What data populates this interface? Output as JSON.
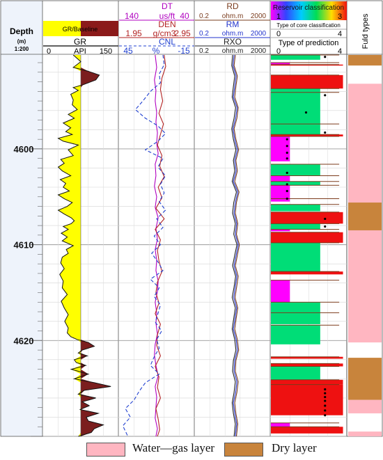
{
  "colors": {
    "gr_fill_low": "#ffff00",
    "gr_fill_high": "#7b1e1e",
    "dt": "#b000c0",
    "den": "#b22222",
    "cnl": "#1f3fd0",
    "rd": "#7a3c1e",
    "rm": "#2233cc",
    "rxo": "#222222",
    "reservoir_class1": "#ff00ff",
    "reservoir_class2": "#00dd77",
    "reservoir_class3": "#ee1111",
    "water_gas": "#ffb6c1",
    "dry": "#c8843c",
    "depth_track_bg": "#eef3fb"
  },
  "header": {
    "depth_title": "Depth",
    "depth_unit": "(m)",
    "depth_scale": "1:200",
    "gr_baseline_label": "GR/Baseline",
    "gr_name": "GR",
    "gr_min": "0",
    "gr_unit": "API",
    "gr_max": "150",
    "dt_name": "DT",
    "dt_min": "140",
    "dt_unit": "us/ft",
    "dt_max": "40",
    "den_name": "DEN",
    "den_min": "1.95",
    "den_unit": "g/cm3",
    "den_max": "2.95",
    "cnl_name": "CNL",
    "cnl_min": "45",
    "cnl_unit": "%",
    "cnl_max": "-15",
    "rd_name": "RD",
    "rm_name": "RM",
    "rxo_name": "RXO",
    "res_min": "0.2",
    "res_unit": "ohm.m",
    "res_max": "2000",
    "reservoir_class_title": "Reservoir classification",
    "reservoir_class_min": "1",
    "reservoir_class_max": "3",
    "core_class_title": "Type of core classification",
    "core_min": "0",
    "core_max": "4",
    "prediction_title": "Type of prediction",
    "pred_min": "0",
    "pred_max": "4",
    "fluid_title": "Fuld types"
  },
  "chart_data": {
    "type": "well-log",
    "depth_axis": {
      "label": "Depth",
      "unit": "m",
      "ticks": [
        4600,
        4610,
        4620
      ],
      "range": [
        4590.2,
        4630
      ]
    },
    "tracks": [
      {
        "name": "GR",
        "unit": "API",
        "range": [
          0,
          150
        ],
        "depth": [
          4590.2,
          4590.9,
          4591.5,
          4591.9,
          4592.3,
          4592.8,
          4593.3,
          4593.6,
          4593.9,
          4594.3,
          4594.9,
          4595.4,
          4595.9,
          4596.4,
          4596.8,
          4597.3,
          4597.8,
          4598.2,
          4598.5,
          4598.9,
          4599.2,
          4599.6,
          4600.1,
          4600.7,
          4601.1,
          4601.5,
          4601.9,
          4602.3,
          4602.8,
          4603.2,
          4603.6,
          4604,
          4604.4,
          4604.8,
          4605.2,
          4605.6,
          4606,
          4606.4,
          4606.8,
          4607.2,
          4607.5,
          4607.8,
          4608.1,
          4608.4,
          4608.8,
          4609.2,
          4609.6,
          4610.1,
          4610.5,
          4610.9,
          4611.3,
          4611.9,
          4612.5,
          4613.1,
          4613.8,
          4614.5,
          4615.2,
          4615.9,
          4616.6,
          4617.3,
          4618,
          4618.7,
          4619.2,
          4619.6,
          4619.9,
          4620.2,
          4620.6,
          4621,
          4621.3,
          4621.6,
          4622,
          4622.3,
          4622.6,
          4623,
          4623.5,
          4624,
          4624.4,
          4624.8,
          4625.2,
          4625.6,
          4626,
          4626.4,
          4626.8,
          4627.2,
          4627.6,
          4628,
          4628.4,
          4628.8,
          4629.2,
          4629.6,
          4630
        ],
        "values": [
          60,
          75,
          60,
          90,
          112,
          105,
          80,
          60,
          70,
          55,
          60,
          58,
          68,
          50,
          62,
          40,
          55,
          45,
          58,
          30,
          40,
          70,
          50,
          60,
          35,
          42,
          30,
          38,
          55,
          34,
          45,
          40,
          52,
          30,
          42,
          58,
          48,
          30,
          42,
          56,
          62,
          56,
          40,
          50,
          36,
          48,
          38,
          60,
          46,
          50,
          38,
          35,
          42,
          33,
          40,
          38,
          48,
          36,
          42,
          50,
          43,
          50,
          48,
          55,
          68,
          90,
          102,
          78,
          70,
          88,
          62,
          66,
          85,
          56,
          90,
          62,
          102,
          135,
          82,
          70,
          105,
          78,
          92,
          74,
          110,
          86,
          90,
          120,
          102,
          96,
          70
        ]
      },
      {
        "name": "DT",
        "unit": "us/ft",
        "range": [
          140,
          40
        ],
        "depth": [
          4590.2,
          4591.5,
          4592.8,
          4593.9,
          4595,
          4596.2,
          4597.2,
          4598.3,
          4599.4,
          4600.5,
          4601.6,
          4602.8,
          4603.9,
          4605,
          4606.1,
          4607.2,
          4608.3,
          4609.4,
          4610.5,
          4611.6,
          4612.7,
          4613.8,
          4614.9,
          4616,
          4617.1,
          4618.2,
          4619.3,
          4620.4,
          4621.5,
          4622.6,
          4623.7,
          4624.8,
          4625.9,
          4627,
          4628.1,
          4629.2,
          4630
        ],
        "values": [
          92,
          90,
          93,
          91,
          92,
          90,
          91,
          89,
          90,
          88,
          92,
          91,
          93,
          90,
          92,
          88,
          91,
          89,
          92,
          90,
          91,
          88,
          89,
          92,
          90,
          91,
          89,
          92,
          93,
          91,
          88,
          92,
          90,
          91,
          92,
          89,
          91
        ]
      },
      {
        "name": "DEN",
        "unit": "g/cm3",
        "range": [
          1.95,
          2.95
        ],
        "depth": [
          4590.2,
          4591.4,
          4592.6,
          4593.8,
          4595,
          4596.3,
          4597.4,
          4598.5,
          4599.6,
          4600.7,
          4601.8,
          4602.9,
          4604,
          4605.1,
          4606.2,
          4607.3,
          4608.4,
          4609.5,
          4610.6,
          4611.7,
          4612.8,
          4613.9,
          4615,
          4616.1,
          4617.2,
          4618.3,
          4619.4,
          4620.5,
          4621.6,
          4622.7,
          4623.8,
          4624.9,
          4626,
          4627.1,
          4628.2,
          4629.3,
          4630
        ],
        "values": [
          2.55,
          2.57,
          2.52,
          2.5,
          2.53,
          2.48,
          2.54,
          2.5,
          2.46,
          2.52,
          2.49,
          2.55,
          2.47,
          2.52,
          2.44,
          2.55,
          2.43,
          2.5,
          2.46,
          2.48,
          2.52,
          2.46,
          2.44,
          2.48,
          2.43,
          2.5,
          2.46,
          2.45,
          2.5,
          2.43,
          2.48,
          2.46,
          2.5,
          2.44,
          2.47,
          2.49,
          2.46
        ]
      },
      {
        "name": "CNL",
        "unit": "%",
        "range": [
          45,
          -15
        ],
        "depth": [
          4590.2,
          4591.2,
          4592.2,
          4593.1,
          4594,
          4595,
          4595.9,
          4596.8,
          4597.6,
          4598.4,
          4599.2,
          4600.1,
          4601,
          4601.9,
          4602.8,
          4603.7,
          4604.6,
          4605.5,
          4606.4,
          4607.3,
          4608.2,
          4609.1,
          4610,
          4610.9,
          4611.8,
          4612.7,
          4613.6,
          4614.5,
          4615.4,
          4616.3,
          4617.2,
          4618.1,
          4619,
          4619.9,
          4620.8,
          4621.7,
          4622.6,
          4623.5,
          4624.4,
          4625.3,
          4626.2,
          4627.1,
          4628,
          4628.9,
          4630
        ],
        "values": [
          10,
          9,
          13,
          12,
          20,
          26,
          32,
          24,
          14,
          8,
          14,
          24,
          10,
          14,
          8,
          12,
          9,
          13,
          8,
          15,
          10,
          17,
          12,
          19,
          14,
          10,
          20,
          13,
          17,
          12,
          14,
          16,
          11,
          15,
          13,
          17,
          20,
          13,
          24,
          29,
          33,
          40,
          36,
          42,
          38
        ]
      },
      {
        "name": "RD",
        "unit": "ohm.m",
        "range": [
          0.2,
          2000
        ],
        "depth": [
          4590.2,
          4591.3,
          4592.4,
          4593.5,
          4594.6,
          4595.7,
          4596.8,
          4597.9,
          4599,
          4600.1,
          4601.2,
          4602.3,
          4603.4,
          4604.5,
          4605.6,
          4606.7,
          4607.8,
          4608.9,
          4610,
          4611.1,
          4612.2,
          4613.3,
          4614.4,
          4615.5,
          4616.6,
          4617.7,
          4618.8,
          4619.9,
          4621,
          4622.1,
          4623.2,
          4624.3,
          4625.4,
          4626.5,
          4627.6,
          4628.7,
          4630
        ],
        "values": [
          28,
          24,
          36,
          30,
          26,
          40,
          34,
          24,
          30,
          42,
          30,
          36,
          26,
          44,
          32,
          28,
          38,
          32,
          46,
          36,
          28,
          40,
          33,
          27,
          38,
          31,
          26,
          36,
          42,
          30,
          28,
          40,
          34,
          26,
          30,
          38,
          32
        ]
      },
      {
        "name": "RM",
        "unit": "ohm.m",
        "range": [
          0.2,
          2000
        ],
        "depth": [
          4590.2,
          4591.3,
          4592.4,
          4593.5,
          4594.6,
          4595.7,
          4596.8,
          4597.9,
          4599,
          4600.1,
          4601.2,
          4602.3,
          4603.4,
          4604.5,
          4605.6,
          4606.7,
          4607.8,
          4608.9,
          4610,
          4611.1,
          4612.2,
          4613.3,
          4614.4,
          4615.5,
          4616.6,
          4617.7,
          4618.8,
          4619.9,
          4621,
          4622.1,
          4623.2,
          4624.3,
          4625.4,
          4626.5,
          4627.6,
          4628.7,
          4630
        ],
        "values": [
          24,
          21,
          31,
          26,
          22,
          35,
          29,
          21,
          26,
          36,
          26,
          31,
          22,
          38,
          28,
          24,
          33,
          28,
          40,
          31,
          24,
          34,
          28,
          23,
          33,
          27,
          22,
          31,
          36,
          26,
          24,
          34,
          29,
          22,
          26,
          33,
          28
        ]
      },
      {
        "name": "RXO",
        "unit": "ohm.m",
        "range": [
          0.2,
          2000
        ],
        "depth": [
          4590.2,
          4591.3,
          4592.4,
          4593.5,
          4594.6,
          4595.7,
          4596.8,
          4597.9,
          4599,
          4600.1,
          4601.2,
          4602.3,
          4603.4,
          4604.5,
          4605.6,
          4606.7,
          4607.8,
          4608.9,
          4610,
          4611.1,
          4612.2,
          4613.3,
          4614.4,
          4615.5,
          4616.6,
          4617.7,
          4618.8,
          4619.9,
          4621,
          4622.1,
          4623.2,
          4624.3,
          4625.4,
          4626.5,
          4627.6,
          4628.7,
          4630
        ],
        "values": [
          20,
          18,
          26,
          22,
          19,
          29,
          24,
          18,
          22,
          30,
          22,
          26,
          19,
          32,
          23,
          20,
          28,
          23,
          34,
          26,
          20,
          29,
          24,
          19,
          28,
          23,
          19,
          26,
          30,
          22,
          20,
          28,
          24,
          19,
          22,
          28,
          24
        ]
      }
    ],
    "prediction_intervals": [
      {
        "top": 4590.2,
        "base": 4590.7,
        "class": 2
      },
      {
        "top": 4591.0,
        "base": 4591.2,
        "class": 1
      },
      {
        "top": 4591.2,
        "base": 4591.3,
        "class": 3
      },
      {
        "top": 4592.3,
        "base": 4593.7,
        "class": 3
      },
      {
        "top": 4593.7,
        "base": 4594.1,
        "class": 2
      },
      {
        "top": 4594.1,
        "base": 4597.4,
        "class": 2
      },
      {
        "top": 4597.4,
        "base": 4598.5,
        "class": 2
      },
      {
        "top": 4598.5,
        "base": 4598.7,
        "class": 3
      },
      {
        "top": 4598.7,
        "base": 4601.3,
        "class": 1
      },
      {
        "top": 4601.6,
        "base": 4602.8,
        "class": 2
      },
      {
        "top": 4602.8,
        "base": 4603.4,
        "class": 1
      },
      {
        "top": 4603.4,
        "base": 4603.8,
        "class": 2
      },
      {
        "top": 4603.8,
        "base": 4605.2,
        "class": 1
      },
      {
        "top": 4605.2,
        "base": 4605.5,
        "class": 1
      },
      {
        "top": 4605.8,
        "base": 4606.5,
        "class": 2
      },
      {
        "top": 4606.6,
        "base": 4607.8,
        "class": 3
      },
      {
        "top": 4607.8,
        "base": 4608.4,
        "class": 2
      },
      {
        "top": 4608.4,
        "base": 4608.6,
        "class": 1
      },
      {
        "top": 4608.7,
        "base": 4609.8,
        "class": 3
      },
      {
        "top": 4609.8,
        "base": 4612.8,
        "class": 2
      },
      {
        "top": 4612.8,
        "base": 4613.1,
        "class": 3
      },
      {
        "top": 4613.7,
        "base": 4616.0,
        "class": 1
      },
      {
        "top": 4616.0,
        "base": 4617.1,
        "class": 2
      },
      {
        "top": 4617.1,
        "base": 4618.3,
        "class": 2
      },
      {
        "top": 4618.4,
        "base": 4620.4,
        "class": 2
      },
      {
        "top": 4621.7,
        "base": 4621.9,
        "class": 3
      },
      {
        "top": 4622.4,
        "base": 4622.7,
        "class": 3
      },
      {
        "top": 4622.7,
        "base": 4624.1,
        "class": 2
      },
      {
        "top": 4624.1,
        "base": 4624.6,
        "class": 3
      },
      {
        "top": 4624.6,
        "base": 4627.8,
        "class": 3
      },
      {
        "top": 4628.6,
        "base": 4629.0,
        "class": 1
      },
      {
        "top": 4629.0,
        "base": 4629.7,
        "class": 3
      }
    ],
    "core_classification": [
      {
        "depth": 4590.4,
        "type": 3
      },
      {
        "depth": 4594.4,
        "type": 3
      },
      {
        "depth": 4596.2,
        "type": 2
      },
      {
        "depth": 4598.3,
        "type": 3
      },
      {
        "depth": 4599.0,
        "type": 1
      },
      {
        "depth": 4599.7,
        "type": 1
      },
      {
        "depth": 4600.4,
        "type": 1
      },
      {
        "depth": 4601.0,
        "type": 1
      },
      {
        "depth": 4602.5,
        "type": 1
      },
      {
        "depth": 4603.7,
        "type": 1
      },
      {
        "depth": 4604.4,
        "type": 1
      },
      {
        "depth": 4605.2,
        "type": 1
      },
      {
        "depth": 4607.3,
        "type": 3
      },
      {
        "depth": 4608.1,
        "type": 3
      },
      {
        "depth": 4625.1,
        "type": 3
      },
      {
        "depth": 4625.5,
        "type": 3
      },
      {
        "depth": 4625.9,
        "type": 3
      },
      {
        "depth": 4626.3,
        "type": 3
      },
      {
        "depth": 4626.8,
        "type": 3
      },
      {
        "depth": 4627.3,
        "type": 3
      },
      {
        "depth": 4627.8,
        "type": 3
      }
    ],
    "fluid_intervals": [
      {
        "top": 4590.2,
        "base": 4591.3,
        "type": "dry"
      },
      {
        "top": 4593.2,
        "base": 4605.6,
        "type": "water_gas"
      },
      {
        "top": 4605.6,
        "base": 4608.5,
        "type": "dry"
      },
      {
        "top": 4608.5,
        "base": 4620.2,
        "type": "water_gas"
      },
      {
        "top": 4621.8,
        "base": 4626.2,
        "type": "dry"
      },
      {
        "top": 4626.2,
        "base": 4627.6,
        "type": "water_gas"
      },
      {
        "top": 4629.5,
        "base": 4630.0,
        "type": "water_gas"
      }
    ],
    "legend": [
      {
        "name": "Water—gas layer",
        "key": "water_gas"
      },
      {
        "name": "Dry layer",
        "key": "dry"
      }
    ]
  }
}
